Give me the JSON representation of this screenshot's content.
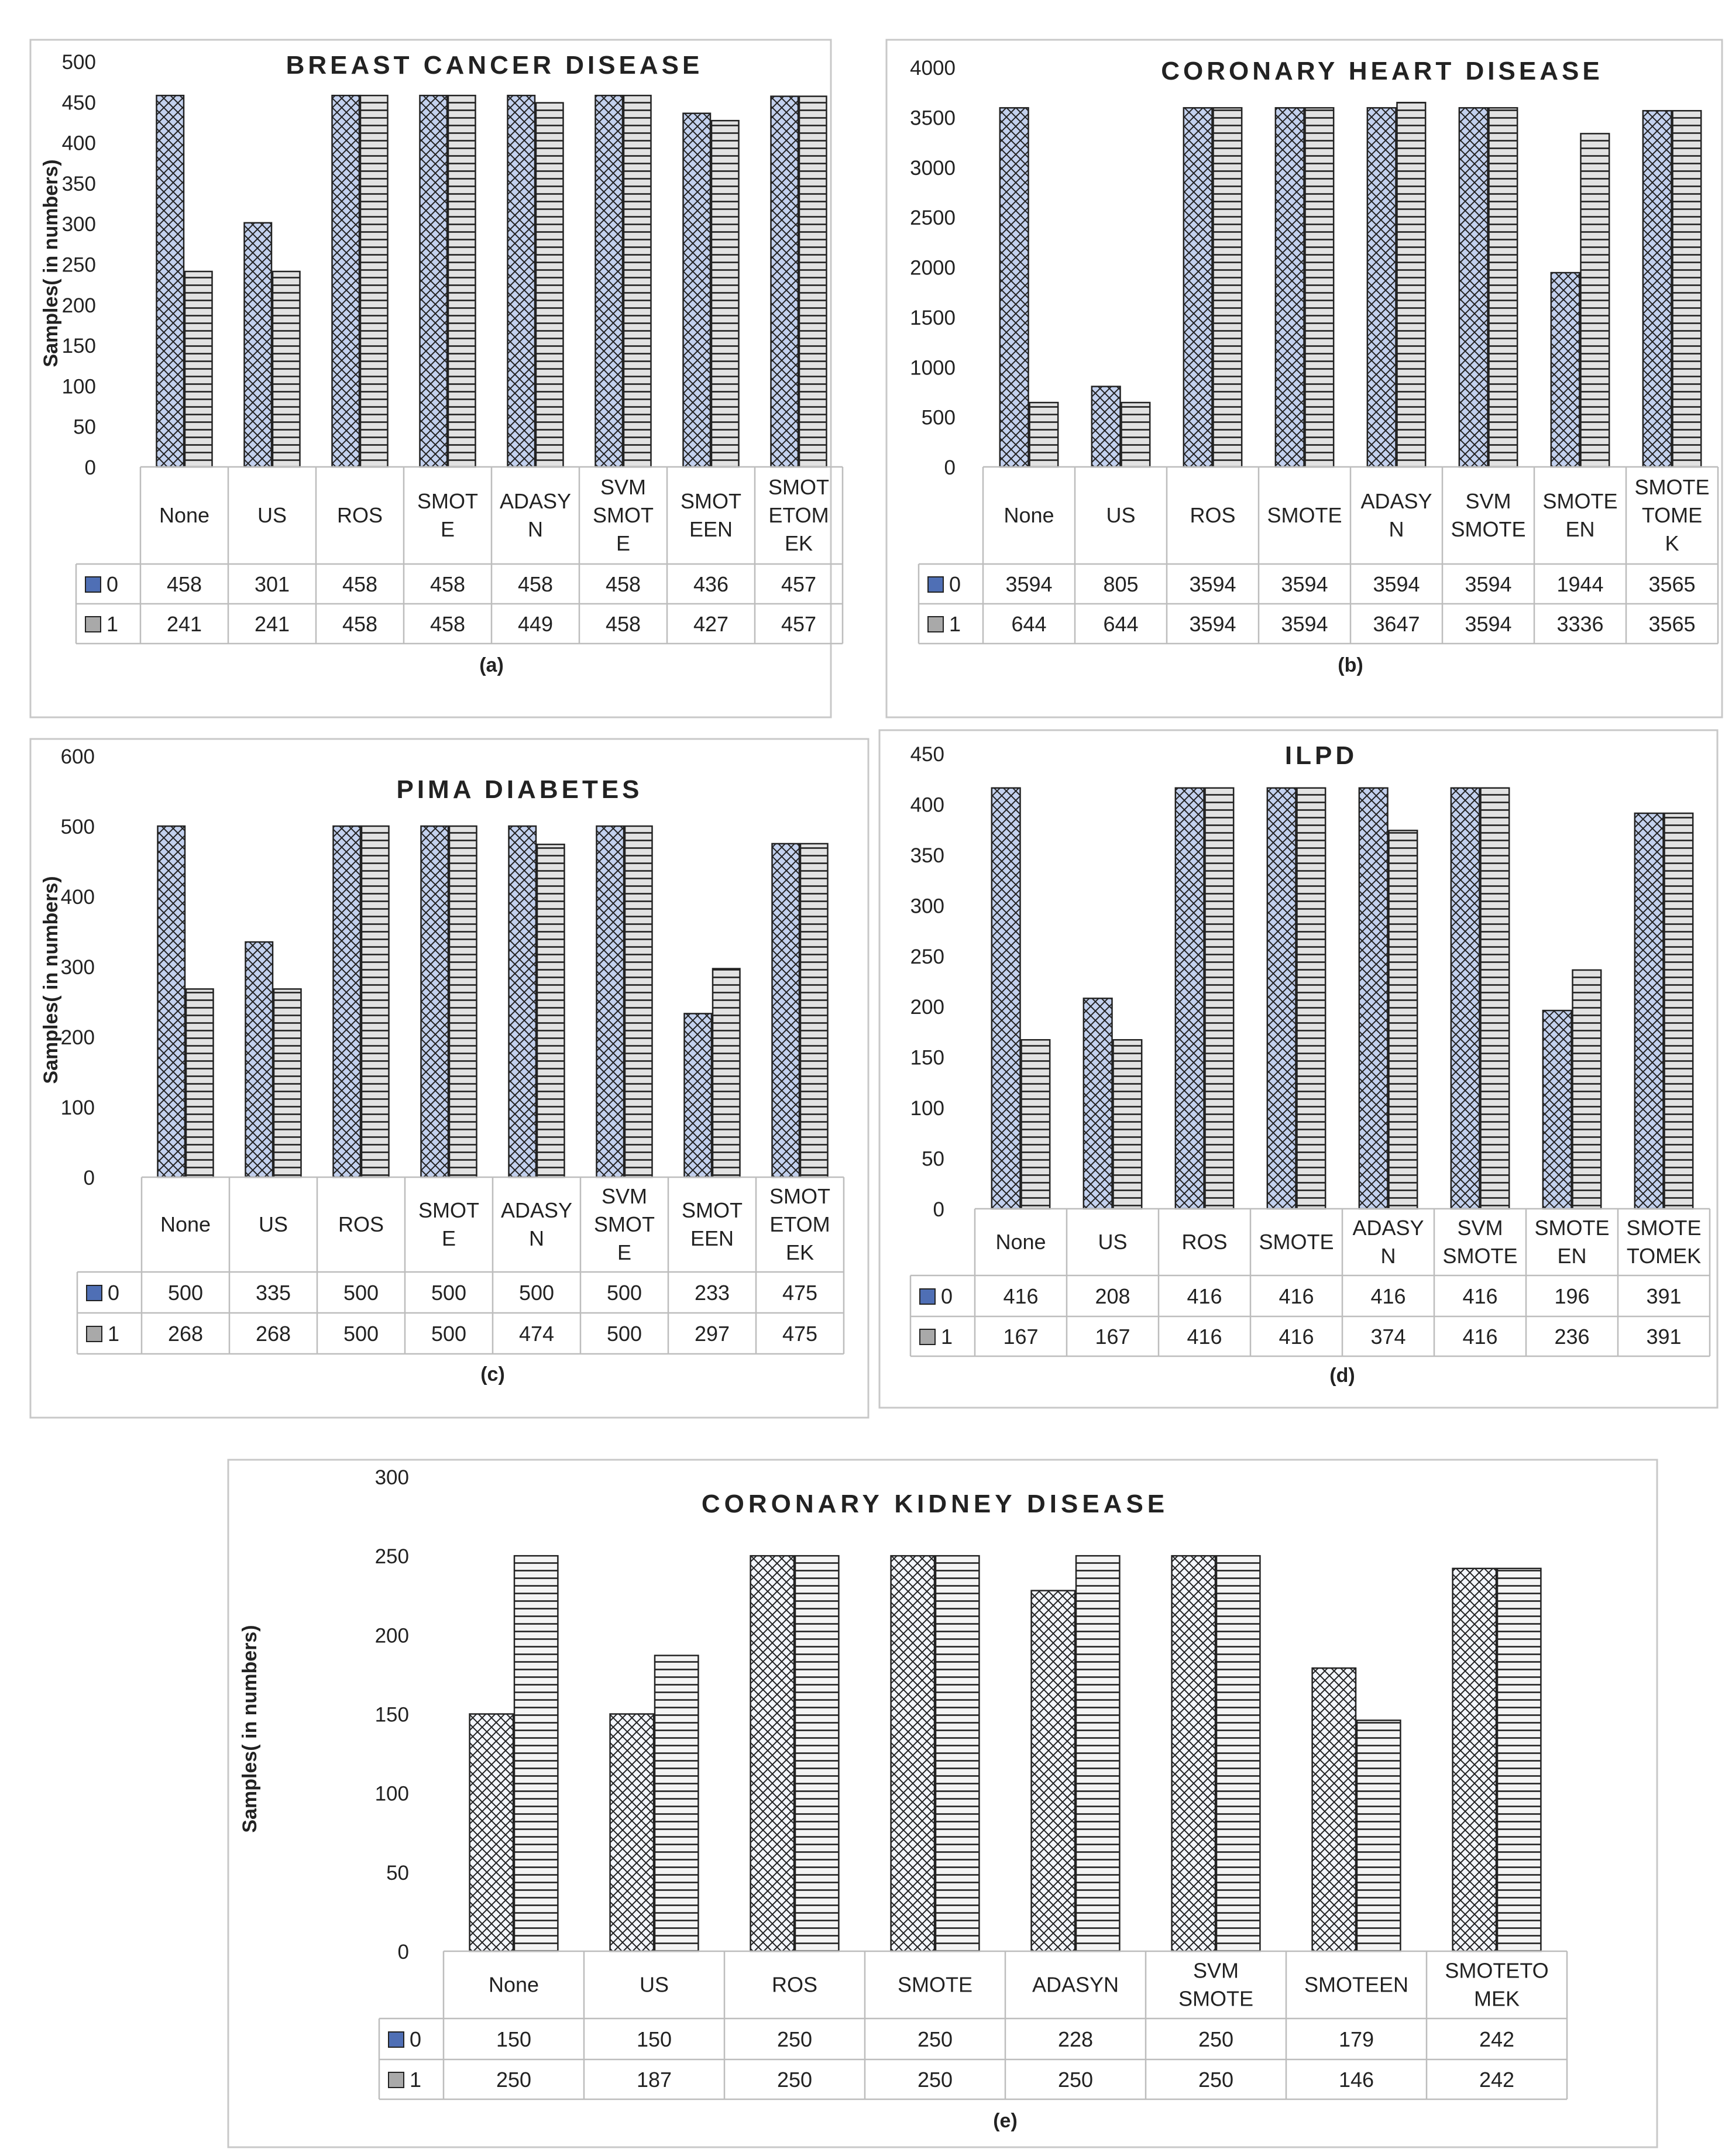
{
  "chart_data": [
    {
      "type": "bar",
      "title": "BREAST CANCER DISEASE",
      "ylabel": "Samples( in numbers)",
      "caption": "(a)",
      "ylim": [
        0,
        500
      ],
      "yticks": [
        0,
        50,
        100,
        150,
        200,
        250,
        300,
        350,
        400,
        450,
        500
      ],
      "categories": [
        "None",
        "US",
        "ROS",
        "SMOT|E",
        "ADASY|N",
        "SVM|SMOT|E",
        "SMOT|EEN",
        "SMOT|ETOM|EK"
      ],
      "series": [
        {
          "name": "0",
          "values": [
            458,
            301,
            458,
            458,
            458,
            458,
            436,
            457
          ]
        },
        {
          "name": "1",
          "values": [
            241,
            241,
            458,
            458,
            449,
            458,
            427,
            457
          ]
        }
      ]
    },
    {
      "type": "bar",
      "title": "CORONARY HEART DISEASE",
      "ylabel": "",
      "caption": "(b)",
      "ylim": [
        0,
        4000
      ],
      "yticks": [
        0,
        500,
        1000,
        1500,
        2000,
        2500,
        3000,
        3500,
        4000
      ],
      "categories": [
        "None",
        "US",
        "ROS",
        "SMOTE",
        "ADASY|N",
        "SVM|SMOTE",
        "SMOTE|EN",
        "SMOTE|TOME|K"
      ],
      "series": [
        {
          "name": "0",
          "values": [
            3594,
            805,
            3594,
            3594,
            3594,
            3594,
            1944,
            3565
          ]
        },
        {
          "name": "1",
          "values": [
            644,
            644,
            3594,
            3594,
            3647,
            3594,
            3336,
            3565
          ]
        }
      ]
    },
    {
      "type": "bar",
      "title": "PIMA DIABETES",
      "ylabel": "Samples( in numbers)",
      "caption": "(c)",
      "ylim": [
        0,
        600
      ],
      "yticks": [
        0,
        100,
        200,
        300,
        400,
        500,
        600
      ],
      "categories": [
        "None",
        "US",
        "ROS",
        "SMOT|E",
        "ADASY|N",
        "SVM|SMOT|E",
        "SMOT|EEN",
        "SMOT|ETOM|EK"
      ],
      "series": [
        {
          "name": "0",
          "values": [
            500,
            335,
            500,
            500,
            500,
            500,
            233,
            475
          ]
        },
        {
          "name": "1",
          "values": [
            268,
            268,
            500,
            500,
            474,
            500,
            297,
            475
          ]
        }
      ]
    },
    {
      "type": "bar",
      "title": "ILPD",
      "ylabel": "",
      "caption": "(d)",
      "ylim": [
        0,
        450
      ],
      "yticks": [
        0,
        50,
        100,
        150,
        200,
        250,
        300,
        350,
        400,
        450
      ],
      "categories": [
        "None",
        "US",
        "ROS",
        "SMOTE",
        "ADASY|N",
        "SVM|SMOTE",
        "SMOTE|EN",
        "SMOTE|TOMEK"
      ],
      "series": [
        {
          "name": "0",
          "values": [
            416,
            208,
            416,
            416,
            416,
            416,
            196,
            391
          ]
        },
        {
          "name": "1",
          "values": [
            167,
            167,
            416,
            416,
            374,
            416,
            236,
            391
          ]
        }
      ]
    },
    {
      "type": "bar",
      "title": "CORONARY KIDNEY DISEASE",
      "ylabel": "Samples( in numbers)",
      "caption": "(e)",
      "ylim": [
        0,
        300
      ],
      "yticks": [
        0,
        50,
        100,
        150,
        200,
        250,
        300
      ],
      "categories": [
        "None",
        "US",
        "ROS",
        "SMOTE",
        "ADASYN",
        "SVM|SMOTE",
        "SMOTEEN",
        "SMOTETO|MEK"
      ],
      "series": [
        {
          "name": "0",
          "values": [
            150,
            150,
            250,
            250,
            228,
            250,
            179,
            242
          ]
        },
        {
          "name": "1",
          "values": [
            250,
            187,
            250,
            250,
            250,
            250,
            146,
            242
          ]
        }
      ]
    }
  ],
  "colors": {
    "series0": "#b9c9ea",
    "series0_legend": "#4f6fb5",
    "series1": "#dcdcdc",
    "series1_legend": "#a9a9a9",
    "frame": "#c8c8c8",
    "grid_table": "#bdbdbd",
    "text": "#222222"
  }
}
